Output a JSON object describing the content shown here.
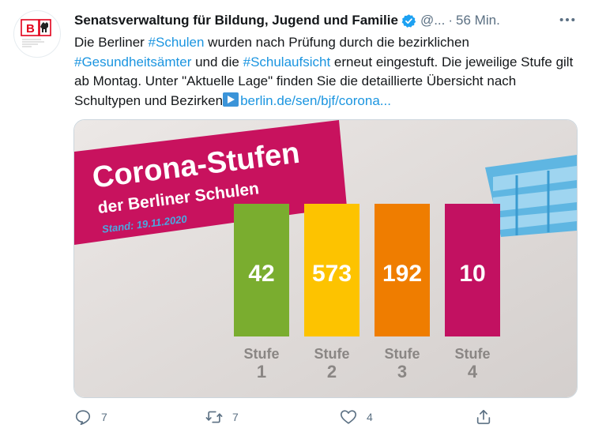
{
  "tweet": {
    "author_name": "Senatsverwaltung für Bildung, Jugend und Familie",
    "handle": "@...",
    "separator": "·",
    "time": "56 Min.",
    "avatar": {
      "letter": "B",
      "org_text": "Senatsverwaltung für Bildung, Jugend und Familie"
    },
    "text": {
      "p1": "Die Berliner ",
      "tag1": "#Schulen",
      "p2": " wurden nach Prüfung durch die bezirklichen ",
      "tag2": "#Gesundheitsämter",
      "p3": " und die ",
      "tag3": "#Schulaufsicht",
      "p4": " erneut eingestuft. Die jeweilige Stufe gilt ab Montag. Unter \"Aktuelle Lage\" finden Sie die detaillierte Übersicht nach Schultypen und Bezirken",
      "link": "berlin.de/sen/bjf/corona..."
    },
    "media": {
      "title": "Corona-Stufen",
      "subtitle": "der Berliner Schulen",
      "stand": "Stand: 19.11.2020",
      "stufe_word": "Stufe",
      "colors": {
        "banner": "#c8125e",
        "stufe1": "#7aad2f",
        "stufe2": "#fdc300",
        "stufe3": "#ef7d00",
        "stufe4": "#c21161"
      }
    },
    "actions": {
      "reply_count": "7",
      "retweet_count": "7",
      "like_count": "4"
    }
  },
  "chart_data": {
    "type": "bar",
    "title": "Corona-Stufen",
    "subtitle": "der Berliner Schulen",
    "annotation": "Stand: 19.11.2020",
    "categories": [
      "Stufe 1",
      "Stufe 2",
      "Stufe 3",
      "Stufe 4"
    ],
    "category_numbers": [
      "1",
      "2",
      "3",
      "4"
    ],
    "values": [
      42,
      573,
      192,
      10
    ],
    "colors": [
      "#7aad2f",
      "#fdc300",
      "#ef7d00",
      "#c21161"
    ],
    "equal_height_bars": true,
    "grid": false,
    "legend": "none"
  }
}
